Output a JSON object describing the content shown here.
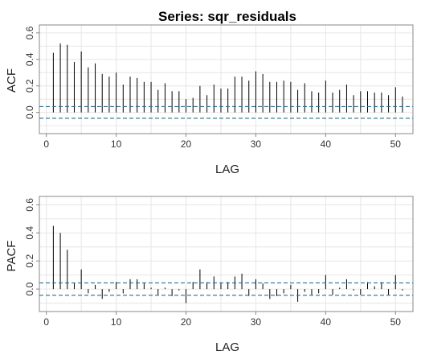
{
  "title": "Series:  sqr_residuals",
  "colors": {
    "bar": "#000000",
    "ci_line": "#2a6d8c",
    "grid": "#e6e6e6",
    "frame": "#888888",
    "background": "#ffffff"
  },
  "chart_data": [
    {
      "type": "bar",
      "panel": "acf",
      "xlabel": "LAG",
      "ylabel": "ACF",
      "xlim": [
        -1,
        52.5
      ],
      "ylim": [
        -0.16,
        0.66
      ],
      "x_ticks": [
        0,
        10,
        20,
        30,
        40,
        50
      ],
      "y_ticks": [
        0.0,
        0.2,
        0.4,
        0.6
      ],
      "y_tick_labels": [
        "0.0",
        "0.2",
        "0.4",
        "0.6"
      ],
      "grid": true,
      "ci_bounds": [
        0.044,
        -0.044
      ],
      "x": [
        1,
        2,
        3,
        4,
        5,
        6,
        7,
        8,
        9,
        10,
        11,
        12,
        13,
        14,
        15,
        16,
        17,
        18,
        19,
        20,
        21,
        22,
        23,
        24,
        25,
        26,
        27,
        28,
        29,
        30,
        31,
        32,
        33,
        34,
        35,
        36,
        37,
        38,
        39,
        40,
        41,
        42,
        43,
        44,
        45,
        46,
        47,
        48,
        49,
        50,
        51
      ],
      "values": [
        0.45,
        0.52,
        0.51,
        0.38,
        0.46,
        0.34,
        0.37,
        0.29,
        0.27,
        0.3,
        0.21,
        0.27,
        0.26,
        0.23,
        0.23,
        0.17,
        0.22,
        0.16,
        0.16,
        0.1,
        0.11,
        0.2,
        0.13,
        0.21,
        0.18,
        0.18,
        0.27,
        0.27,
        0.24,
        0.31,
        0.29,
        0.23,
        0.23,
        0.24,
        0.23,
        0.17,
        0.22,
        0.16,
        0.15,
        0.24,
        0.15,
        0.17,
        0.21,
        0.13,
        0.16,
        0.16,
        0.15,
        0.15,
        0.13,
        0.19,
        0.12
      ]
    },
    {
      "type": "bar",
      "panel": "pacf",
      "xlabel": "LAG",
      "ylabel": "PACF",
      "xlim": [
        -1,
        52.5
      ],
      "ylim": [
        -0.16,
        0.66
      ],
      "x_ticks": [
        0,
        10,
        20,
        30,
        40,
        50
      ],
      "y_ticks": [
        0.0,
        0.2,
        0.4,
        0.6
      ],
      "y_tick_labels": [
        "0.0",
        "0.2",
        "0.4",
        "0.6"
      ],
      "grid": true,
      "ci_bounds": [
        0.044,
        -0.044
      ],
      "x": [
        1,
        2,
        3,
        4,
        5,
        6,
        7,
        8,
        9,
        10,
        11,
        12,
        13,
        14,
        15,
        16,
        17,
        18,
        19,
        20,
        21,
        22,
        23,
        24,
        25,
        26,
        27,
        28,
        29,
        30,
        31,
        32,
        33,
        34,
        35,
        36,
        37,
        38,
        39,
        40,
        41,
        42,
        43,
        44,
        45,
        46,
        47,
        48,
        49,
        50,
        51
      ],
      "values": [
        0.45,
        0.4,
        0.28,
        0.04,
        0.14,
        -0.03,
        0.03,
        -0.07,
        -0.02,
        0.05,
        -0.03,
        0.07,
        0.07,
        0.04,
        0.01,
        -0.04,
        0.01,
        -0.05,
        -0.01,
        -0.1,
        0.05,
        0.14,
        0.05,
        0.09,
        0.04,
        0.05,
        0.09,
        0.11,
        -0.05,
        0.07,
        0.04,
        -0.07,
        -0.05,
        -0.03,
        0.03,
        -0.09,
        -0.02,
        -0.04,
        -0.03,
        0.1,
        -0.04,
        0.01,
        0.07,
        -0.01,
        -0.04,
        0.05,
        0.02,
        0.05,
        -0.04,
        0.1,
        -0.01
      ]
    }
  ]
}
